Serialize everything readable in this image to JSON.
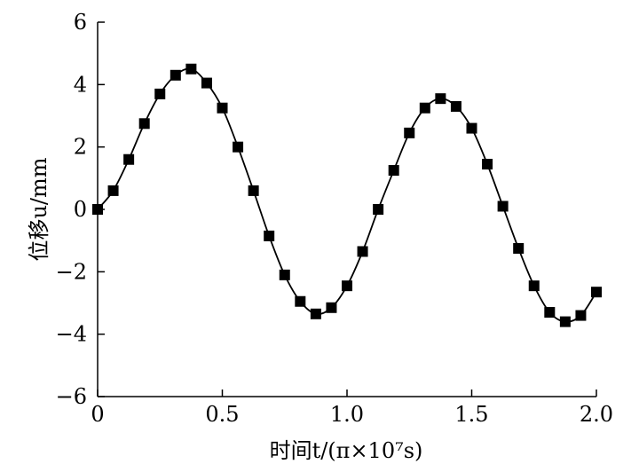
{
  "chart_data": {
    "type": "line",
    "title": "",
    "xlabel": "时间t/(π×10⁷s)",
    "ylabel": "位移u/mm",
    "xlim": [
      0,
      2.0
    ],
    "ylim": [
      -6,
      6
    ],
    "x_ticks": [
      0,
      0.5,
      1.0,
      1.5,
      2.0
    ],
    "x_tick_labels": [
      "0",
      "0.5",
      "1.0",
      "1.5",
      "2.0"
    ],
    "y_ticks": [
      -6,
      -4,
      -2,
      0,
      2,
      4,
      6
    ],
    "y_tick_labels": [
      "−6",
      "−4",
      "−2",
      "0",
      "2",
      "4",
      "6"
    ],
    "grid": false,
    "legend": "none",
    "series": [
      {
        "line_color": "#000000",
        "marker": "square",
        "marker_color": "#000000",
        "x": [
          0,
          0.0625,
          0.125,
          0.1875,
          0.25,
          0.3125,
          0.375,
          0.4375,
          0.5,
          0.5625,
          0.625,
          0.6875,
          0.75,
          0.8125,
          0.875,
          0.9375,
          1.0,
          1.0625,
          1.125,
          1.1875,
          1.25,
          1.3125,
          1.375,
          1.4375,
          1.5,
          1.5625,
          1.625,
          1.6875,
          1.75,
          1.8125,
          1.875,
          1.9375,
          2.0
        ],
        "y": [
          0.0,
          0.6,
          1.6,
          2.75,
          3.7,
          4.3,
          4.5,
          4.05,
          3.25,
          2.0,
          0.6,
          -0.85,
          -2.1,
          -2.95,
          -3.35,
          -3.15,
          -2.45,
          -1.35,
          0.0,
          1.25,
          2.45,
          3.25,
          3.55,
          3.3,
          2.6,
          1.45,
          0.1,
          -1.25,
          -2.45,
          -3.3,
          -3.6,
          -3.4,
          -2.65
        ]
      }
    ]
  }
}
